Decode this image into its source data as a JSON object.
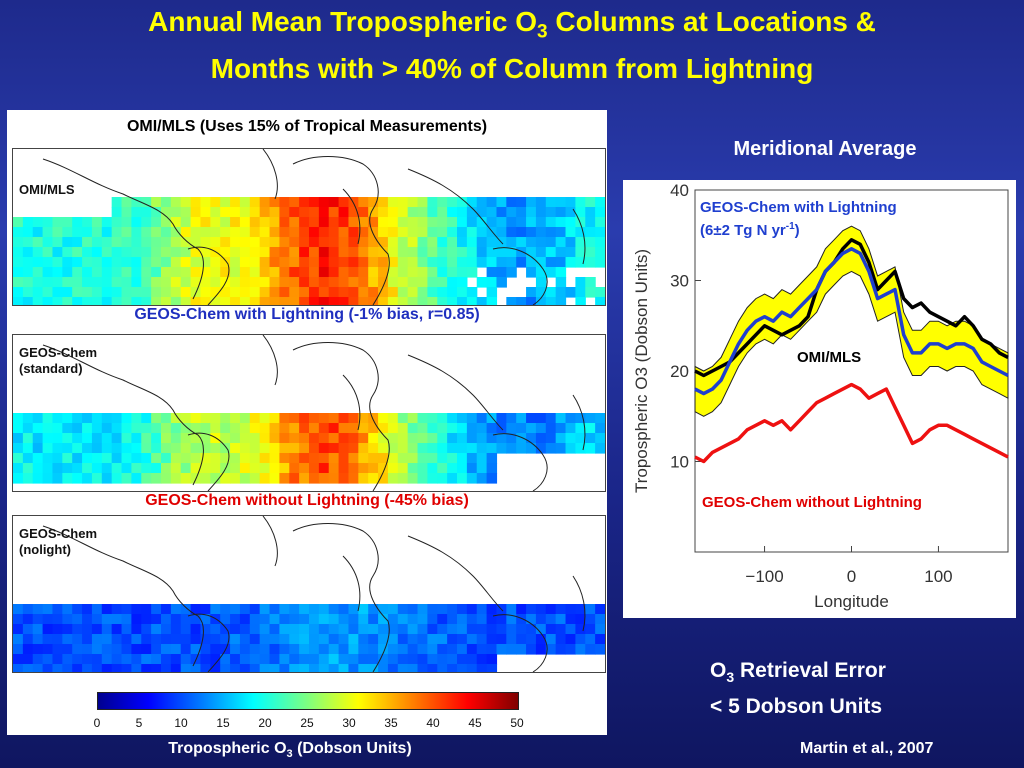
{
  "title": {
    "line1_prefix": "Annual Mean Tropospheric O",
    "line1_sub": "3",
    "line1_suffix": " Columns at Locations &",
    "line2": "Months with > 40% of Column from Lightning"
  },
  "maps": {
    "panel1": {
      "caption": "OMI/MLS (Uses 15% of Tropical Measurements)",
      "name": "OMI/MLS"
    },
    "panel2": {
      "caption": "GEOS-Chem with Lightning (-1% bias, r=0.85)",
      "name_line1": "GEOS-Chem",
      "name_line2": "(standard)"
    },
    "panel3": {
      "caption": "GEOS-Chem without Lightning (-45% bias)",
      "name_line1": "GEOS-Chem",
      "name_line2": "(nolight)"
    }
  },
  "colorbar": {
    "ticks": [
      "0",
      "5",
      "10",
      "15",
      "20",
      "25",
      "30",
      "35",
      "40",
      "45",
      "50"
    ],
    "label_prefix": "Tropospheric O",
    "label_sub": "3",
    "label_suffix": " (Dobson Units)"
  },
  "right": {
    "heading": "Meridional Average",
    "with_lightning_line1": "GEOS-Chem with Lightning",
    "with_lightning_line2_prefix": "(6±2 Tg N yr",
    "with_lightning_line2_sup": "-1",
    "with_lightning_line2_suffix": ")",
    "omi_label": "OMI/MLS",
    "without_label": "GEOS-Chem without Lightning"
  },
  "retrieval": {
    "line1_prefix": "O",
    "line1_sub": "3",
    "line1_suffix": " Retrieval Error",
    "line2": "< 5 Dobson Units"
  },
  "credit": "Martin et al., 2007",
  "colors": {
    "title": "#ffff00",
    "geos_with": "#1f3fcf",
    "omi": "#000000",
    "geos_without": "#ee1111",
    "envelope": "#ffff00"
  },
  "chart_data": {
    "type": "line",
    "title": "",
    "xlabel": "Longitude",
    "ylabel": "Tropospheric O3 (Dobson Units)",
    "xlim": [
      -180,
      180
    ],
    "ylim": [
      0,
      40
    ],
    "xticks": [
      "-100",
      "0",
      "100"
    ],
    "yticks": [
      "10",
      "20",
      "30",
      "40"
    ],
    "x": [
      -180,
      -170,
      -160,
      -150,
      -140,
      -130,
      -120,
      -110,
      -100,
      -90,
      -80,
      -70,
      -60,
      -50,
      -40,
      -30,
      -20,
      -10,
      0,
      10,
      20,
      30,
      40,
      50,
      60,
      70,
      80,
      90,
      100,
      110,
      120,
      130,
      140,
      150,
      160,
      170,
      180
    ],
    "series": [
      {
        "name": "GEOS-Chem with Lightning",
        "values": [
          18,
          17.5,
          18,
          19,
          21,
          23,
          24.5,
          25.5,
          26,
          25.5,
          26.5,
          26,
          27,
          28,
          29,
          31,
          32,
          33,
          33.5,
          33,
          31,
          28,
          28.5,
          29,
          24,
          22,
          22,
          23,
          23,
          22.5,
          23,
          23,
          22.5,
          21,
          20.5,
          20,
          19.5
        ],
        "lower": [
          15.5,
          15,
          15.5,
          16.5,
          18.5,
          20.5,
          22,
          23,
          23.5,
          23,
          24,
          23.5,
          24.5,
          25.5,
          26.5,
          28.5,
          29.5,
          30.5,
          31,
          30.5,
          28.5,
          25.5,
          26,
          26.5,
          21.5,
          19.5,
          19.5,
          20.5,
          20.5,
          20,
          20.5,
          20.5,
          20,
          18.5,
          18,
          17.5,
          17
        ],
        "upper": [
          20.5,
          20,
          20.5,
          21.5,
          23.5,
          25.5,
          27,
          28,
          28.5,
          28,
          29,
          28.5,
          29.5,
          30.5,
          31.5,
          33.5,
          34.5,
          35.5,
          36,
          35.5,
          33.5,
          30.5,
          31,
          31.5,
          26.5,
          24.5,
          24.5,
          25.5,
          25.5,
          25,
          25.5,
          25.5,
          25,
          23.5,
          23,
          22.5,
          22
        ]
      },
      {
        "name": "OMI/MLS",
        "values": [
          20,
          19.5,
          20,
          20.5,
          21,
          22,
          23,
          24,
          25,
          24.5,
          24,
          24.5,
          25,
          26,
          29,
          31,
          32,
          33.5,
          34.5,
          34,
          32,
          29,
          30,
          31,
          28,
          27,
          27.5,
          26.5,
          26,
          25.5,
          25,
          26,
          25,
          23.5,
          23,
          22,
          21.5
        ]
      },
      {
        "name": "GEOS-Chem without Lightning",
        "values": [
          10.5,
          10,
          11,
          11.5,
          12,
          12.5,
          13.5,
          14,
          14.5,
          14,
          14.5,
          13.5,
          14.5,
          15.5,
          16.5,
          17,
          17.5,
          18,
          18.5,
          18,
          17,
          17.5,
          18,
          16,
          14,
          12,
          12.5,
          13.5,
          14,
          14,
          13.5,
          13,
          12.5,
          12,
          11.5,
          11,
          10.5
        ]
      }
    ]
  }
}
